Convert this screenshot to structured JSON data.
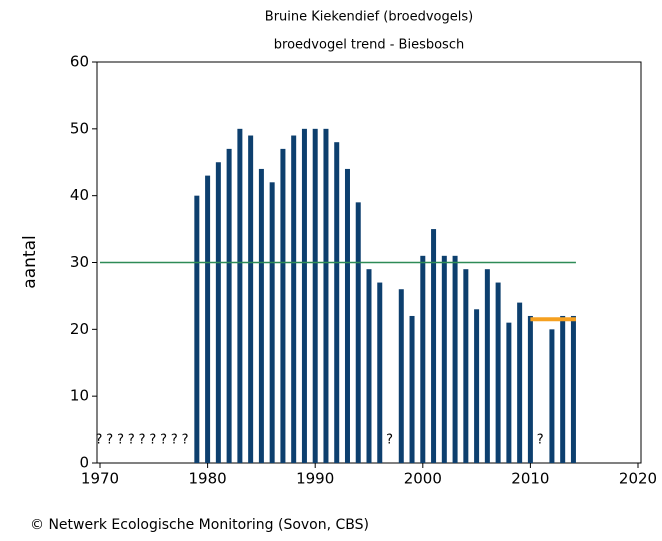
{
  "chart_data": {
    "type": "bar",
    "title": "Bruine Kiekendief (broedvogels)",
    "subtitle": "broedvogel trend - Biesbosch",
    "ylabel": "aantal",
    "source": "© Netwerk Ecologische Monitoring (Sovon, CBS)",
    "x": [
      1979,
      1980,
      1981,
      1982,
      1983,
      1984,
      1985,
      1986,
      1987,
      1988,
      1989,
      1990,
      1991,
      1992,
      1993,
      1994,
      1995,
      1996,
      1997,
      1998,
      1999,
      2000,
      2001,
      2002,
      2003,
      2004,
      2005,
      2006,
      2007,
      2008,
      2009,
      2010,
      2011,
      2012,
      2013,
      2014
    ],
    "values": [
      40,
      43,
      45,
      47,
      50,
      49,
      44,
      42,
      47,
      49,
      50,
      50,
      50,
      48,
      44,
      39,
      29,
      27,
      null,
      26,
      22,
      31,
      35,
      31,
      31,
      29,
      23,
      29,
      27,
      21,
      24,
      22,
      null,
      20,
      22,
      22
    ],
    "color": "#0d3f6e",
    "unknown": {
      "label": "?",
      "x": [
        1970,
        1971,
        1972,
        1973,
        1974,
        1975,
        1976,
        1977,
        1978,
        1997,
        2011
      ]
    },
    "reference_lines": [
      {
        "y": 30,
        "x": [
          1970,
          2014
        ],
        "color": "#2e8b57"
      },
      {
        "y": 21.5,
        "x": [
          2010,
          2014
        ],
        "color": "#f5a020"
      }
    ],
    "xlim": [
      1970,
      2020
    ],
    "xticks": [
      1970,
      1980,
      1990,
      2000,
      2010,
      2020
    ],
    "ylim": [
      0,
      60
    ],
    "yticks": [
      0,
      10,
      20,
      30,
      40,
      50,
      60
    ]
  }
}
